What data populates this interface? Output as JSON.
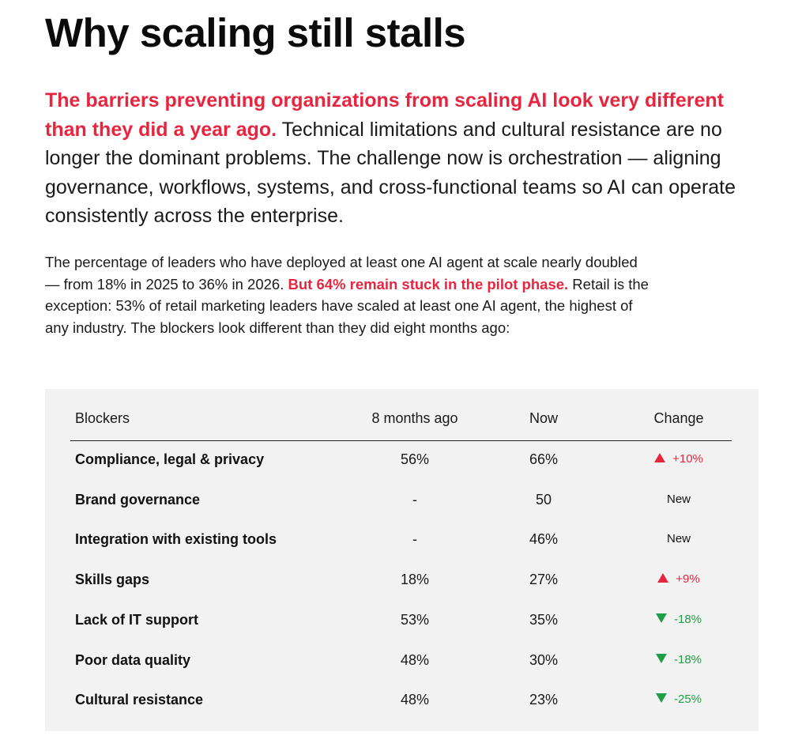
{
  "title": "Why scaling still stalls",
  "lead": {
    "highlight": "The barriers preventing organizations from scaling AI look very different than they did a year ago.",
    "rest": " Technical limitations and cultural resistance are no longer the dominant problems. The challenge now is orchestration — aligning governance, workflows, systems, and cross-functional teams so AI can operate consistently across the enterprise."
  },
  "body": {
    "part1": "The percentage of leaders who have deployed at least one AI agent at scale nearly doubled — from 18% in 2025 to 36% in 2026. ",
    "highlight": "But 64% remain stuck in the pilot phase.",
    "part2": " Retail is the exception: 53% of retail marketing leaders have scaled at least one AI agent, the highest of any industry. The blockers look different than they did eight months ago:"
  },
  "table": {
    "headers": {
      "blockers": "Blockers",
      "before": "8 months ago",
      "now": "Now",
      "change": "Change"
    },
    "rows": [
      {
        "blocker": "Compliance, legal & privacy",
        "before": "56%",
        "now": "66%",
        "change": "+10%",
        "direction": "up"
      },
      {
        "blocker": "Brand governance",
        "before": "-",
        "now": "50",
        "change": "New",
        "direction": "new"
      },
      {
        "blocker": "Integration with existing tools",
        "before": "-",
        "now": "46%",
        "change": "New",
        "direction": "new"
      },
      {
        "blocker": "Skills gaps",
        "before": "18%",
        "now": "27%",
        "change": "+9%",
        "direction": "up"
      },
      {
        "blocker": "Lack of IT support",
        "before": "53%",
        "now": "35%",
        "change": "-18%",
        "direction": "down"
      },
      {
        "blocker": "Poor data quality",
        "before": "48%",
        "now": "30%",
        "change": "-18%",
        "direction": "down"
      },
      {
        "blocker": "Cultural resistance",
        "before": "48%",
        "now": "23%",
        "change": "-25%",
        "direction": "down"
      }
    ]
  },
  "colors": {
    "accent_red": "#e8253f",
    "decrease_green": "#1e9e45",
    "panel_bg": "#f2f2f2"
  },
  "icons": {
    "increase": "triangle-up-icon",
    "decrease": "triangle-down-icon"
  }
}
